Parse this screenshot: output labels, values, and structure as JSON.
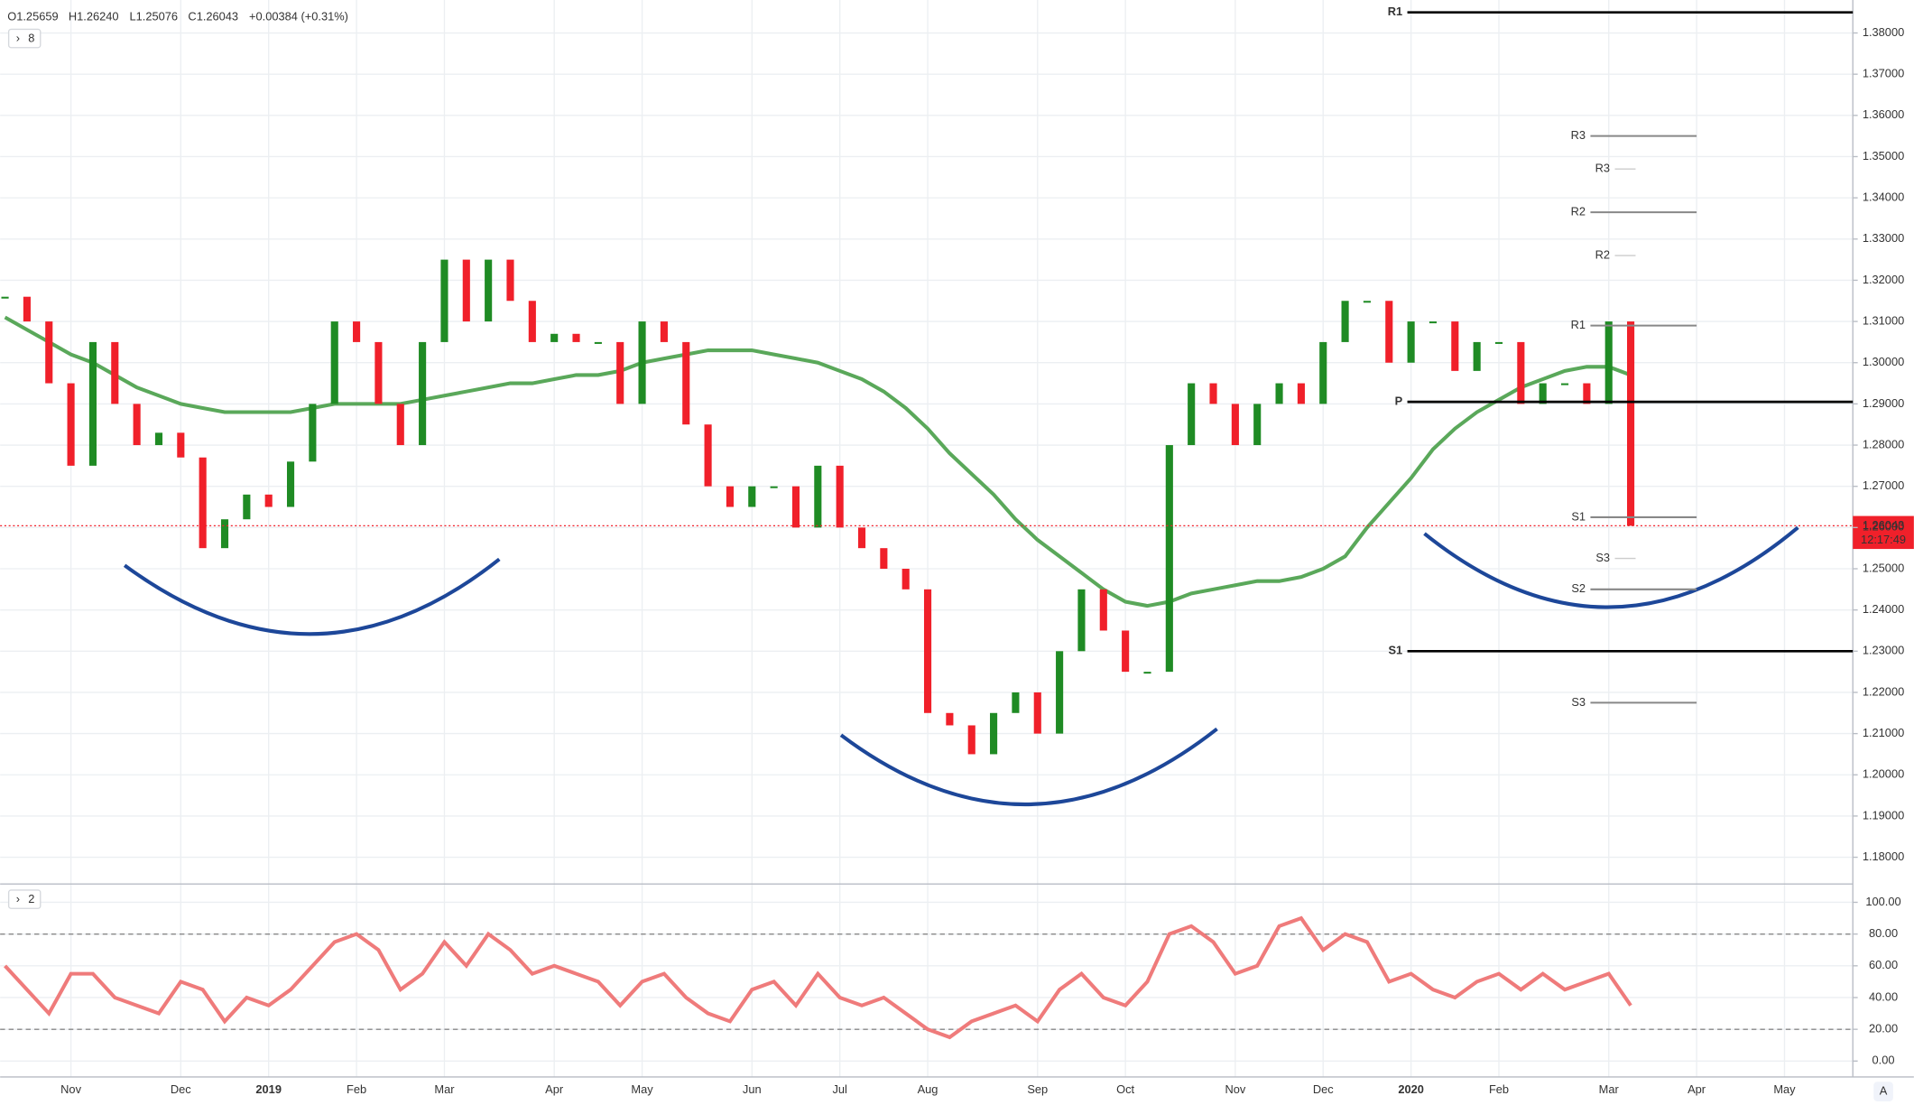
{
  "header": {
    "ohlc": [
      "O1.25659",
      "H1.26240",
      "L1.25076",
      "C1.26043",
      "+0.00384 (+0.31%)"
    ],
    "countdown": "12:17:49",
    "auto_button": "A"
  },
  "chart_data": [
    {
      "type": "candles",
      "indicators": 8,
      "categories": [
        null,
        null,
        null,
        "Nov",
        null,
        null,
        null,
        null,
        "Dec",
        null,
        null,
        null,
        "2019",
        null,
        null,
        null,
        "Feb",
        null,
        null,
        null,
        "Mar",
        null,
        null,
        null,
        null,
        "Apr",
        null,
        null,
        null,
        "May",
        null,
        null,
        null,
        null,
        "Jun",
        null,
        null,
        null,
        "Jul",
        null,
        null,
        null,
        "Aug",
        null,
        null,
        null,
        null,
        "Sep",
        null,
        null,
        null,
        "Oct",
        null,
        null,
        null,
        null,
        "Nov",
        null,
        null,
        null,
        "Dec",
        null,
        null,
        null,
        "2020",
        null,
        null,
        null,
        "Feb",
        null,
        null,
        null,
        null,
        "Mar",
        null,
        null,
        null,
        "Apr",
        null,
        null,
        null,
        "May",
        null,
        null,
        null
      ],
      "series": [
        {
          "up_color": "#1f8b24",
          "down_color": "#f0202a",
          "values": [
            1.316,
            1.31,
            1.295,
            1.275,
            1.305,
            1.29,
            1.28,
            1.283,
            1.277,
            1.255,
            1.262,
            1.268,
            1.265,
            1.276,
            1.29,
            1.31,
            1.305,
            1.29,
            1.28,
            1.305,
            1.325,
            1.31,
            1.325,
            1.315,
            1.305,
            1.307,
            1.305,
            1.305,
            1.29,
            1.31,
            1.305,
            1.285,
            1.27,
            1.265,
            1.27,
            1.27,
            1.26,
            1.275,
            1.26,
            1.255,
            1.25,
            1.245,
            1.215,
            1.212,
            1.205,
            1.215,
            1.22,
            1.21,
            1.23,
            1.245,
            1.235,
            1.225,
            1.225,
            1.28,
            1.295,
            1.29,
            1.28,
            1.29,
            1.295,
            1.29,
            1.305,
            1.315,
            1.315,
            1.3,
            1.31,
            1.31,
            1.298,
            1.305,
            1.305,
            1.29,
            1.295,
            1.295,
            1.29,
            1.31,
            1.26043,
            null,
            null,
            null,
            null,
            null,
            null,
            null,
            null,
            null,
            null
          ]
        },
        {
          "color": "#5aa85a",
          "values": [
            1.311,
            1.308,
            1.305,
            1.302,
            1.3,
            1.297,
            1.294,
            1.292,
            1.29,
            1.289,
            1.288,
            1.288,
            1.288,
            1.288,
            1.289,
            1.29,
            1.29,
            1.29,
            1.29,
            1.291,
            1.292,
            1.293,
            1.294,
            1.295,
            1.295,
            1.296,
            1.297,
            1.297,
            1.298,
            1.3,
            1.301,
            1.302,
            1.303,
            1.303,
            1.303,
            1.302,
            1.301,
            1.3,
            1.298,
            1.296,
            1.293,
            1.289,
            1.284,
            1.278,
            1.273,
            1.268,
            1.262,
            1.257,
            1.253,
            1.249,
            1.245,
            1.242,
            1.241,
            1.242,
            1.244,
            1.245,
            1.246,
            1.247,
            1.247,
            1.248,
            1.25,
            1.253,
            1.26,
            1.266,
            1.272,
            1.279,
            1.284,
            1.288,
            1.291,
            1.294,
            1.296,
            1.298,
            1.299,
            1.299,
            1.297,
            null,
            null,
            null,
            null,
            null,
            null,
            null,
            null,
            null,
            null
          ]
        }
      ],
      "ylim": [
        1.1741,
        1.388
      ],
      "yticks": [
        {
          "value": 1.18,
          "label": "1.18000"
        },
        {
          "value": 1.19,
          "label": "1.19000"
        },
        {
          "value": 1.2,
          "label": "1.20000"
        },
        {
          "value": 1.21,
          "label": "1.21000"
        },
        {
          "value": 1.22,
          "label": "1.22000"
        },
        {
          "value": 1.23,
          "label": "1.23000"
        },
        {
          "value": 1.24,
          "label": "1.24000"
        },
        {
          "value": 1.25,
          "label": "1.25000"
        },
        {
          "value": 1.26,
          "label": "1.26000"
        },
        {
          "value": 1.27,
          "label": "1.27000"
        },
        {
          "value": 1.28,
          "label": "1.28000"
        },
        {
          "value": 1.29,
          "label": "1.29000"
        },
        {
          "value": 1.3,
          "label": "1.30000"
        },
        {
          "value": 1.31,
          "label": "1.31000"
        },
        {
          "value": 1.32,
          "label": "1.32000"
        },
        {
          "value": 1.33,
          "label": "1.33000"
        },
        {
          "value": 1.34,
          "label": "1.34000"
        },
        {
          "value": 1.35,
          "label": "1.35000"
        },
        {
          "value": 1.36,
          "label": "1.36000"
        },
        {
          "value": 1.37,
          "label": "1.37000"
        },
        {
          "value": 1.38,
          "label": "1.38000"
        }
      ],
      "grid": true,
      "last_color": "#f0202a",
      "pivots": [
        {
          "label": "R1",
          "value": 1.385,
          "style": "major"
        },
        {
          "label": "P",
          "value": 1.2905,
          "style": "major"
        },
        {
          "label": "S1",
          "value": 1.23,
          "style": "major"
        },
        {
          "label": "R3",
          "value": 1.355,
          "style": "minor"
        },
        {
          "label": "R2",
          "value": 1.3365,
          "style": "minor"
        },
        {
          "label": "R1",
          "value": 1.309,
          "style": "minor"
        },
        {
          "label": "S1",
          "value": 1.2625,
          "style": "minor"
        },
        {
          "label": "S2",
          "value": 1.245,
          "style": "minor"
        },
        {
          "label": "S3",
          "value": 1.2175,
          "style": "minor"
        },
        {
          "label": "R3",
          "value": 1.347,
          "style": "faint"
        },
        {
          "label": "R2",
          "value": 1.326,
          "style": "faint"
        },
        {
          "label": "S3",
          "value": 1.2525,
          "style": "faint"
        }
      ]
    },
    {
      "type": "line",
      "indicators": 2,
      "series": [
        {
          "color": "#ef7b7b",
          "values": [
            60,
            45,
            30,
            55,
            55,
            40,
            35,
            30,
            50,
            45,
            25,
            40,
            35,
            45,
            60,
            75,
            80,
            70,
            45,
            55,
            75,
            60,
            80,
            70,
            55,
            60,
            55,
            50,
            35,
            50,
            55,
            40,
            30,
            25,
            45,
            50,
            35,
            55,
            40,
            35,
            40,
            30,
            20,
            15,
            25,
            30,
            35,
            25,
            45,
            55,
            40,
            35,
            50,
            80,
            85,
            75,
            55,
            60,
            85,
            90,
            70,
            80,
            75,
            50,
            55,
            45,
            40,
            50,
            55,
            45,
            55,
            45,
            50,
            55,
            35,
            null,
            null,
            null,
            null,
            null,
            null,
            null,
            null,
            null,
            null
          ]
        }
      ],
      "ylim": [
        -10,
        110
      ],
      "yticks": [
        {
          "value": 0,
          "label": "0.00"
        },
        {
          "value": 20,
          "label": "20.00"
        },
        {
          "value": 40,
          "label": "40.00"
        },
        {
          "value": 60,
          "label": "60.00"
        },
        {
          "value": 80,
          "label": "80.00"
        },
        {
          "value": 100,
          "label": "100.00"
        }
      ],
      "levels": [
        20,
        80
      ]
    }
  ]
}
